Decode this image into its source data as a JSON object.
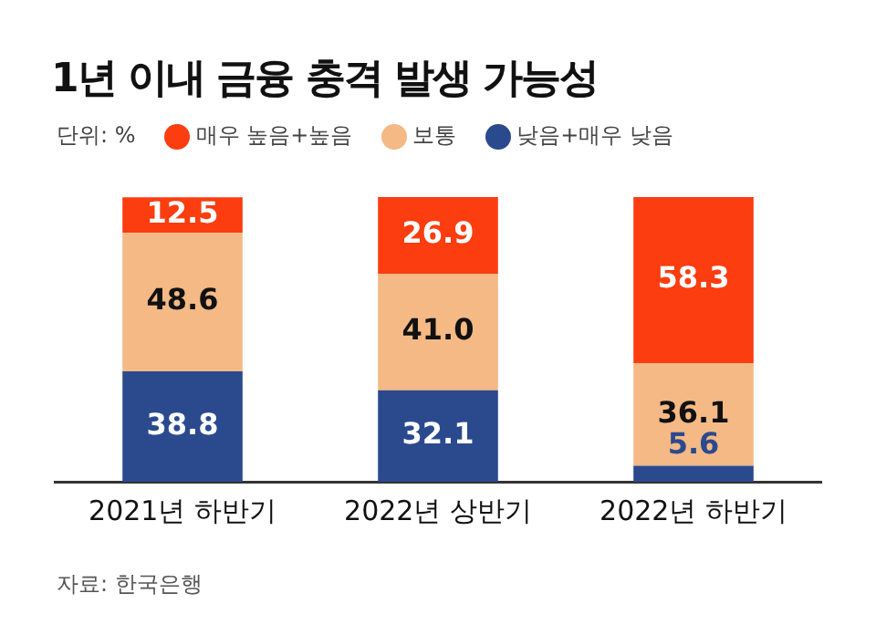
{
  "chart_data": {
    "type": "bar",
    "title": "1년 이내 금융 충격 발생 가능성",
    "subtitle": "단위: %",
    "categories": [
      "2021년 하반기",
      "2022년 상반기",
      "2022년 하반기"
    ],
    "stacked": true,
    "ylim": [
      0,
      100
    ],
    "tick_labels": "x",
    "grid": false,
    "legend": "top left",
    "series": [
      {
        "name": "낮음+매우 낮음",
        "color": "#2b4a8e",
        "values": [
          38.8,
          32.1,
          5.6
        ],
        "value_labels": [
          "38.8",
          "32.1",
          "5.6"
        ]
      },
      {
        "name": "보통",
        "color": "#f4b985",
        "values": [
          48.6,
          41.0,
          36.1
        ],
        "value_labels": [
          "48.6",
          "41.0",
          "36.1"
        ]
      },
      {
        "name": "매우 높음+높음",
        "color": "#fb3d10",
        "values": [
          12.5,
          26.9,
          58.3
        ],
        "value_labels": [
          "12.5",
          "26.9",
          "58.3"
        ]
      }
    ],
    "annotations": [
      "자료: 한국은행"
    ]
  }
}
